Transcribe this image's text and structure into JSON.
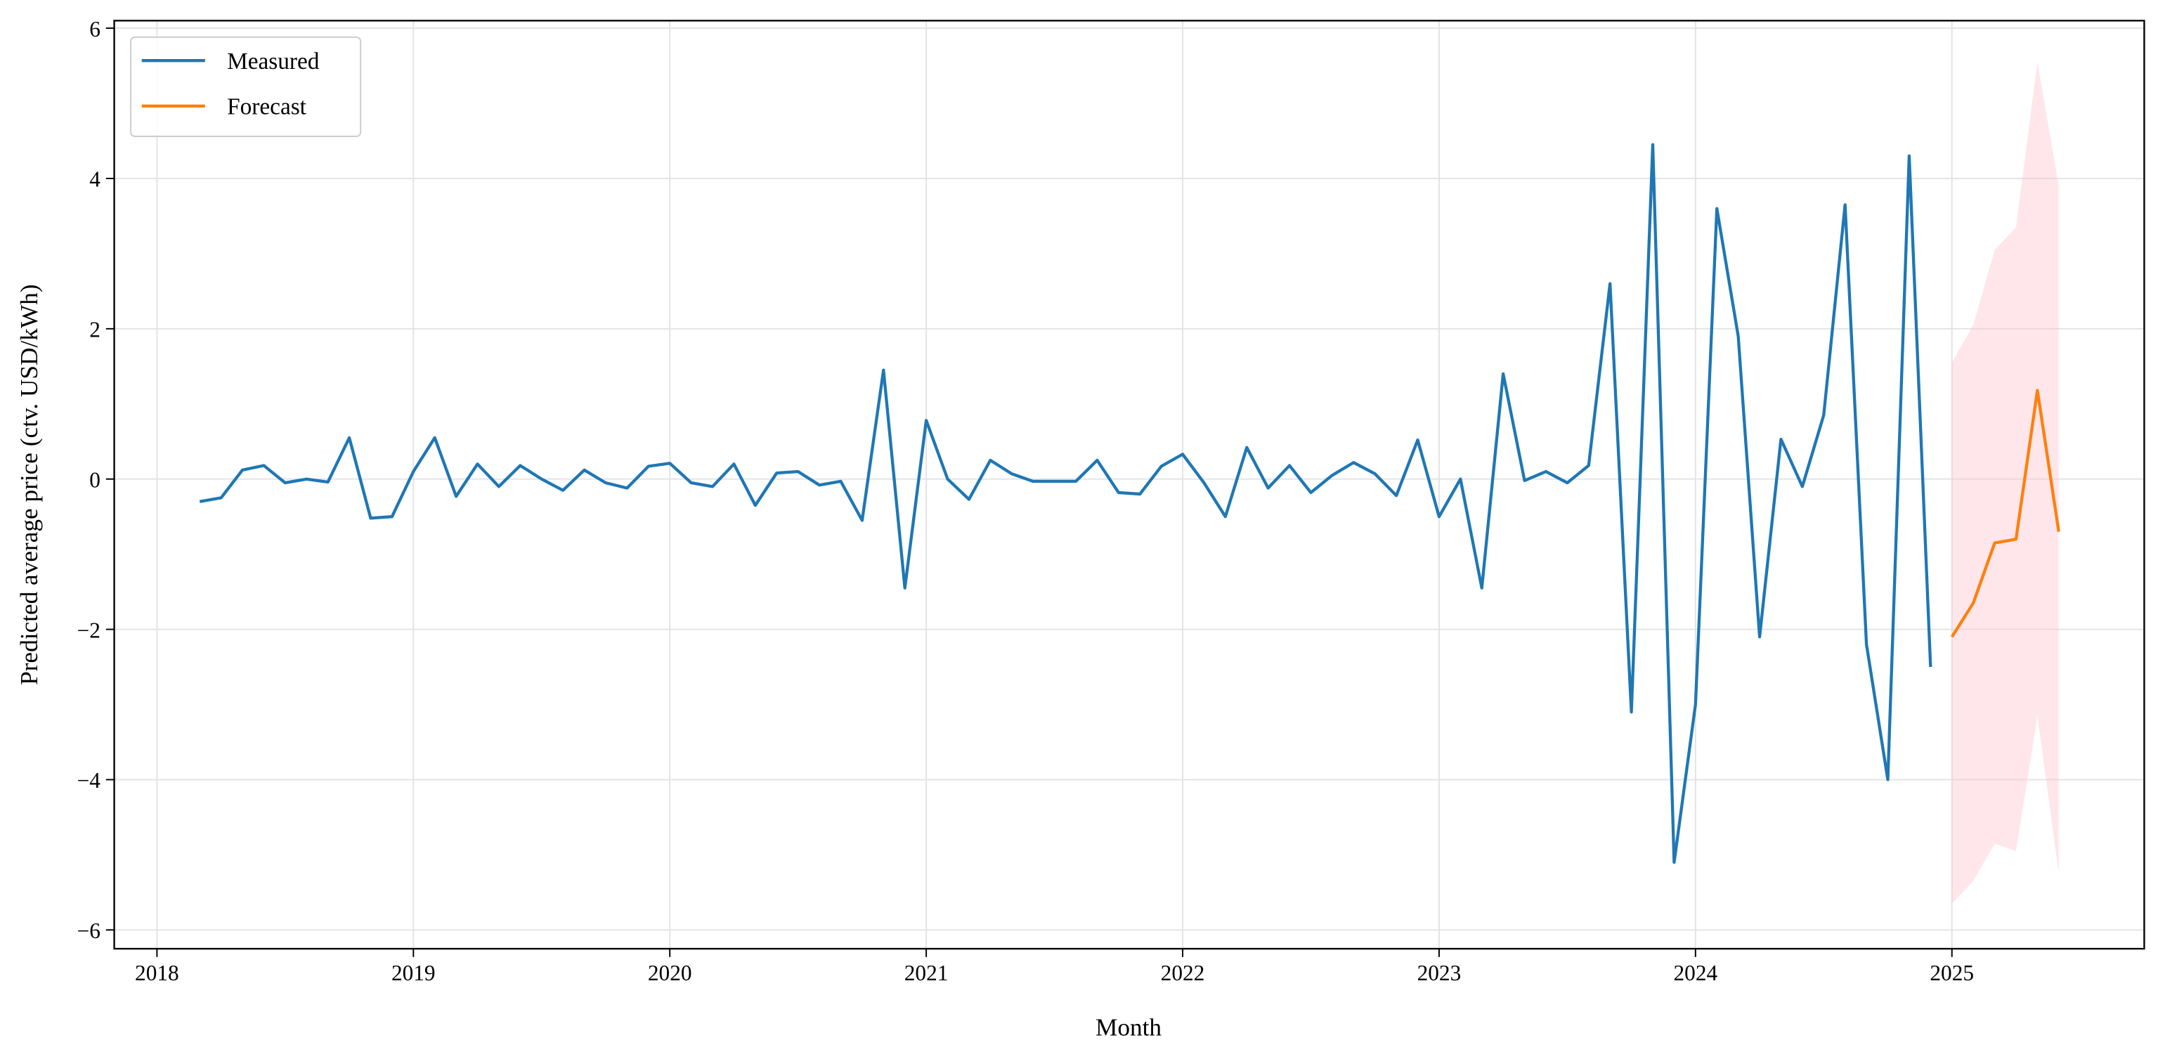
{
  "chart_data": {
    "type": "line",
    "xlabel": "Month",
    "ylabel": "Predicted average price (ctv. USD/kWh)",
    "xlim": [
      "2017-11",
      "2025-10"
    ],
    "xticks": [
      {
        "value": "2018-01",
        "label": "2018"
      },
      {
        "value": "2019-01",
        "label": "2019"
      },
      {
        "value": "2020-01",
        "label": "2020"
      },
      {
        "value": "2021-01",
        "label": "2021"
      },
      {
        "value": "2022-01",
        "label": "2022"
      },
      {
        "value": "2023-01",
        "label": "2023"
      },
      {
        "value": "2024-01",
        "label": "2024"
      },
      {
        "value": "2025-01",
        "label": "2025"
      }
    ],
    "ylim": [
      -6.25,
      6.1
    ],
    "yticks": [
      {
        "value": -6,
        "label": "−6"
      },
      {
        "value": -4,
        "label": "−4"
      },
      {
        "value": -2,
        "label": "−2"
      },
      0,
      2,
      4,
      6
    ],
    "grid": true,
    "legend": "upper left",
    "series": [
      {
        "name": "Measured",
        "color": "#1f77b4",
        "x": [
          "2018-03",
          "2018-04",
          "2018-05",
          "2018-06",
          "2018-07",
          "2018-08",
          "2018-09",
          "2018-10",
          "2018-11",
          "2018-12",
          "2019-01",
          "2019-02",
          "2019-03",
          "2019-04",
          "2019-05",
          "2019-06",
          "2019-07",
          "2019-08",
          "2019-09",
          "2019-10",
          "2019-11",
          "2019-12",
          "2020-01",
          "2020-02",
          "2020-03",
          "2020-04",
          "2020-05",
          "2020-06",
          "2020-07",
          "2020-08",
          "2020-09",
          "2020-10",
          "2020-11",
          "2020-12",
          "2021-01",
          "2021-02",
          "2021-03",
          "2021-04",
          "2021-05",
          "2021-06",
          "2021-07",
          "2021-08",
          "2021-09",
          "2021-10",
          "2021-11",
          "2021-12",
          "2022-01",
          "2022-02",
          "2022-03",
          "2022-04",
          "2022-05",
          "2022-06",
          "2022-07",
          "2022-08",
          "2022-09",
          "2022-10",
          "2022-11",
          "2022-12",
          "2023-01",
          "2023-02",
          "2023-03",
          "2023-04",
          "2023-05",
          "2023-06",
          "2023-07",
          "2023-08",
          "2023-09",
          "2023-10",
          "2023-11",
          "2023-12",
          "2024-01",
          "2024-02",
          "2024-03",
          "2024-04",
          "2024-05",
          "2024-06",
          "2024-07",
          "2024-08",
          "2024-09",
          "2024-10",
          "2024-11",
          "2024-12"
        ],
        "values": [
          -0.3,
          -0.25,
          0.12,
          0.18,
          -0.05,
          0.0,
          -0.04,
          0.55,
          -0.52,
          -0.5,
          0.1,
          0.55,
          -0.23,
          0.2,
          -0.1,
          0.18,
          0.0,
          -0.15,
          0.12,
          -0.05,
          -0.12,
          0.17,
          0.21,
          -0.05,
          -0.1,
          0.2,
          -0.35,
          0.08,
          0.1,
          -0.08,
          -0.03,
          -0.55,
          1.45,
          -1.45,
          0.78,
          0.0,
          -0.27,
          0.25,
          0.07,
          -0.03,
          -0.03,
          -0.03,
          0.25,
          -0.18,
          -0.2,
          0.17,
          0.33,
          -0.05,
          -0.5,
          0.42,
          -0.12,
          0.18,
          -0.18,
          0.05,
          0.22,
          0.07,
          -0.22,
          0.52,
          -0.5,
          0.0,
          -1.45,
          1.4,
          -0.02,
          0.1,
          -0.05,
          0.18,
          2.6,
          -3.1,
          4.45,
          -5.1,
          -3.0,
          3.6,
          1.9,
          -2.1,
          0.53,
          -0.1,
          0.85,
          3.65,
          -2.2,
          -4.0,
          4.3,
          -2.5
        ]
      },
      {
        "name": "Forecast",
        "color": "#ff7f0e",
        "x": [
          "2025-01",
          "2025-02",
          "2025-03",
          "2025-04",
          "2025-05",
          "2025-06"
        ],
        "values": [
          -2.1,
          -1.65,
          -0.85,
          -0.8,
          1.18,
          -0.7
        ]
      }
    ],
    "band": {
      "color": "#ffc0cb",
      "x": [
        "2025-01",
        "2025-02",
        "2025-03",
        "2025-04",
        "2025-05",
        "2025-06"
      ],
      "upper": [
        1.55,
        2.05,
        3.05,
        3.35,
        5.55,
        3.9
      ],
      "lower": [
        -5.65,
        -5.35,
        -4.85,
        -4.95,
        -3.15,
        -5.25
      ]
    }
  }
}
